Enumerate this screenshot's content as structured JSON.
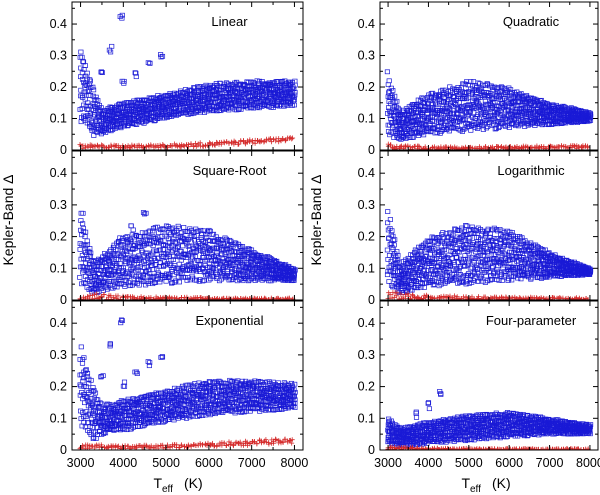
{
  "figure": {
    "ylabel": "Kepler-Band Δ",
    "xlabel_main": "T",
    "xlabel_sub": "eff",
    "xlabel_unit": "(K)",
    "series_colors": {
      "model_a": "#1a1ad6",
      "model_b": "#d42a2a"
    },
    "series_names": [
      "blue squares",
      "red crosses"
    ]
  },
  "chart_data": [
    {
      "type": "scatter",
      "title": "Linear",
      "xlim": [
        2800,
        8200
      ],
      "ylim": [
        0,
        0.47
      ],
      "yticks": [
        0,
        0.1,
        0.2,
        0.3,
        0.4
      ],
      "xticks": [
        3000,
        4000,
        5000,
        6000,
        7000,
        8000
      ],
      "blue_band": {
        "x": [
          3000,
          3300,
          3500,
          4000,
          5000,
          6000,
          7000,
          8000
        ],
        "low": [
          0.09,
          0.04,
          0.05,
          0.07,
          0.1,
          0.12,
          0.13,
          0.14
        ],
        "high": [
          0.33,
          0.2,
          0.13,
          0.15,
          0.18,
          0.21,
          0.22,
          0.22
        ]
      },
      "blue_spikes": [
        {
          "x": [
            3500,
            3700,
            3950
          ],
          "y": [
            0.25,
            0.33,
            0.43
          ]
        },
        {
          "x": [
            4000,
            4300,
            4600,
            4900
          ],
          "y": [
            0.22,
            0.25,
            0.28,
            0.31
          ]
        }
      ],
      "red_band": {
        "x": [
          3000,
          4000,
          5000,
          6000,
          7000,
          8000
        ],
        "low": [
          0.005,
          0.006,
          0.008,
          0.012,
          0.02,
          0.03
        ],
        "high": [
          0.018,
          0.015,
          0.018,
          0.024,
          0.033,
          0.04
        ]
      }
    },
    {
      "type": "scatter",
      "title": "Quadratic",
      "xlim": [
        2800,
        8200
      ],
      "ylim": [
        0,
        0.47
      ],
      "yticks": [
        0,
        0.1,
        0.2,
        0.3,
        0.4
      ],
      "xticks": [
        3000,
        4000,
        5000,
        6000,
        7000,
        8000
      ],
      "blue_band": {
        "x": [
          3000,
          3300,
          4000,
          5000,
          6000,
          7000,
          8000
        ],
        "low": [
          0.05,
          0.03,
          0.05,
          0.06,
          0.07,
          0.08,
          0.09
        ],
        "high": [
          0.25,
          0.12,
          0.18,
          0.22,
          0.2,
          0.15,
          0.12
        ]
      },
      "blue_spikes": [],
      "red_band": {
        "x": [
          3000,
          4000,
          5000,
          6000,
          7000,
          8000
        ],
        "low": [
          0.0,
          0.001,
          0.002,
          0.003,
          0.004,
          0.006
        ],
        "high": [
          0.02,
          0.01,
          0.01,
          0.012,
          0.014,
          0.016
        ]
      }
    },
    {
      "type": "scatter",
      "title": "Square-Root",
      "xlim": [
        2800,
        8200
      ],
      "ylim": [
        0,
        0.47
      ],
      "yticks": [
        0,
        0.1,
        0.2,
        0.3,
        0.4
      ],
      "xticks": [
        3000,
        4000,
        5000,
        6000,
        7000,
        8000
      ],
      "blue_band": {
        "x": [
          3000,
          3300,
          4000,
          5000,
          6000,
          7000,
          8000
        ],
        "low": [
          0.05,
          0.02,
          0.04,
          0.05,
          0.06,
          0.06,
          0.06
        ],
        "high": [
          0.3,
          0.12,
          0.2,
          0.24,
          0.22,
          0.16,
          0.1
        ]
      },
      "blue_spikes": [
        {
          "x": [
            3900,
            4200,
            4500
          ],
          "y": [
            0.2,
            0.24,
            0.28
          ]
        }
      ],
      "red_band": {
        "x": [
          3000,
          4000,
          5000,
          6000,
          7000,
          8000
        ],
        "low": [
          0.0,
          0.0,
          0.0,
          0.0,
          0.0,
          0.0
        ],
        "high": [
          0.025,
          0.012,
          0.01,
          0.008,
          0.006,
          0.006
        ]
      }
    },
    {
      "type": "scatter",
      "title": "Logarithmic",
      "xlim": [
        2800,
        8200
      ],
      "ylim": [
        0,
        0.47
      ],
      "yticks": [
        0,
        0.1,
        0.2,
        0.3,
        0.4
      ],
      "xticks": [
        3000,
        4000,
        5000,
        6000,
        7000,
        8000
      ],
      "blue_band": {
        "x": [
          3000,
          3300,
          4000,
          5000,
          6000,
          7000,
          8000
        ],
        "low": [
          0.05,
          0.02,
          0.04,
          0.05,
          0.06,
          0.07,
          0.08
        ],
        "high": [
          0.29,
          0.11,
          0.2,
          0.24,
          0.22,
          0.15,
          0.1
        ]
      },
      "blue_spikes": [],
      "red_band": {
        "x": [
          3000,
          4000,
          5000,
          6000,
          7000,
          8000
        ],
        "low": [
          0.0,
          0.0,
          0.0,
          0.0,
          0.0,
          0.0
        ],
        "high": [
          0.025,
          0.015,
          0.012,
          0.01,
          0.008,
          0.007
        ]
      }
    },
    {
      "type": "scatter",
      "title": "Exponential",
      "xlim": [
        2800,
        8200
      ],
      "ylim": [
        0,
        0.47
      ],
      "yticks": [
        0,
        0.1,
        0.2,
        0.3,
        0.4
      ],
      "xticks": [
        3000,
        4000,
        5000,
        6000,
        7000,
        8000
      ],
      "blue_band": {
        "x": [
          3000,
          3300,
          3500,
          4000,
          5000,
          6000,
          7000,
          8000
        ],
        "low": [
          0.08,
          0.03,
          0.05,
          0.06,
          0.09,
          0.11,
          0.12,
          0.13
        ],
        "high": [
          0.33,
          0.2,
          0.14,
          0.16,
          0.19,
          0.22,
          0.22,
          0.21
        ]
      },
      "blue_spikes": [
        {
          "x": [
            3500,
            3700,
            3950
          ],
          "y": [
            0.25,
            0.34,
            0.42
          ]
        },
        {
          "x": [
            4000,
            4300,
            4600,
            4900
          ],
          "y": [
            0.22,
            0.25,
            0.28,
            0.31
          ]
        }
      ],
      "red_band": {
        "x": [
          3000,
          4000,
          5000,
          6000,
          7000,
          8000
        ],
        "low": [
          0.004,
          0.004,
          0.006,
          0.01,
          0.015,
          0.022
        ],
        "high": [
          0.018,
          0.014,
          0.016,
          0.022,
          0.03,
          0.038
        ]
      }
    },
    {
      "type": "scatter",
      "title": "Four-parameter",
      "xlim": [
        2800,
        8200
      ],
      "ylim": [
        0,
        0.47
      ],
      "yticks": [
        0,
        0.1,
        0.2,
        0.3,
        0.4
      ],
      "xticks": [
        3000,
        4000,
        5000,
        6000,
        7000,
        8000
      ],
      "blue_band": {
        "x": [
          3000,
          3300,
          4000,
          5000,
          6000,
          7000,
          8000
        ],
        "low": [
          0.02,
          0.01,
          0.02,
          0.03,
          0.04,
          0.05,
          0.05
        ],
        "high": [
          0.1,
          0.07,
          0.09,
          0.11,
          0.12,
          0.1,
          0.08
        ]
      },
      "blue_spikes": [
        {
          "x": [
            3700,
            4000,
            4300
          ],
          "y": [
            0.12,
            0.15,
            0.19
          ]
        }
      ],
      "red_band": {
        "x": [
          3000,
          4000,
          5000,
          6000,
          7000,
          8000
        ],
        "low": [
          0.0,
          0.0,
          0.0,
          0.0,
          0.0,
          0.0
        ],
        "high": [
          0.01,
          0.006,
          0.005,
          0.004,
          0.004,
          0.004
        ]
      }
    }
  ]
}
